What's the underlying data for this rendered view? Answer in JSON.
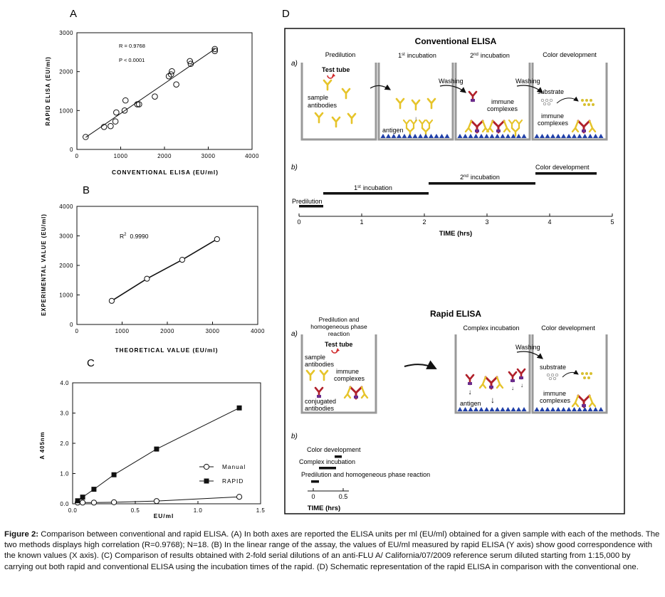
{
  "panel_labels": {
    "A": "A",
    "B": "B",
    "C": "C",
    "D": "D"
  },
  "chart_data": [
    {
      "id": "A",
      "type": "scatter",
      "title": "",
      "xlabel": "CONVENTIONAL ELISA (EU/ml)",
      "ylabel": "RAPID ELISA (EU/ml)",
      "xlim": [
        0,
        4000
      ],
      "ylim": [
        0,
        3000
      ],
      "xticks": [
        "0",
        "1000",
        "2000",
        "3000",
        "4000"
      ],
      "yticks": [
        "0",
        "1000",
        "2000",
        "3000"
      ],
      "points": [
        {
          "x": 200,
          "y": 320
        },
        {
          "x": 620,
          "y": 580
        },
        {
          "x": 770,
          "y": 600
        },
        {
          "x": 880,
          "y": 720
        },
        {
          "x": 900,
          "y": 950
        },
        {
          "x": 1090,
          "y": 1000
        },
        {
          "x": 1110,
          "y": 1260
        },
        {
          "x": 1380,
          "y": 1160
        },
        {
          "x": 1420,
          "y": 1160
        },
        {
          "x": 1780,
          "y": 1360
        },
        {
          "x": 2100,
          "y": 1880
        },
        {
          "x": 2150,
          "y": 1930
        },
        {
          "x": 2170,
          "y": 2010
        },
        {
          "x": 2270,
          "y": 1670
        },
        {
          "x": 2580,
          "y": 2270
        },
        {
          "x": 2600,
          "y": 2200
        },
        {
          "x": 3150,
          "y": 2530
        },
        {
          "x": 3150,
          "y": 2580
        }
      ],
      "fit_line": [
        {
          "x": 200,
          "y": 310
        },
        {
          "x": 3150,
          "y": 2580
        }
      ],
      "annotations": [
        "R = 0.9768",
        "P < 0.0001"
      ]
    },
    {
      "id": "B",
      "type": "line",
      "title": "",
      "xlabel": "THEORETICAL VALUE (EU/ml)",
      "ylabel": "EXPERIMENTAL VALUE (EU/ml)",
      "xlim": [
        0,
        4000
      ],
      "ylim": [
        0,
        4000
      ],
      "xticks": [
        "0",
        "1000",
        "2000",
        "3000",
        "4000"
      ],
      "yticks": [
        "0",
        "1000",
        "2000",
        "3000",
        "4000"
      ],
      "points": [
        {
          "x": 770,
          "y": 800
        },
        {
          "x": 1550,
          "y": 1550
        },
        {
          "x": 2330,
          "y": 2190
        },
        {
          "x": 3100,
          "y": 2890
        }
      ],
      "annotation": {
        "label": "R",
        "superscript": "2",
        "value": "0.9990"
      }
    },
    {
      "id": "C",
      "type": "line",
      "title": "",
      "xlabel": "EU/ml",
      "ylabel": "A 405nm",
      "xlim": [
        0,
        1.5
      ],
      "ylim": [
        0,
        4.0
      ],
      "xticks": [
        "0.0",
        "0.5",
        "1.0",
        "1.5"
      ],
      "yticks": [
        "0.0",
        "1.0",
        "2.0",
        "3.0",
        "4.0"
      ],
      "series": [
        {
          "name": "Manual",
          "marker": "open-circle",
          "x": [
            0.04,
            0.08,
            0.17,
            0.33,
            0.67,
            1.33
          ],
          "y": [
            0.04,
            0.04,
            0.04,
            0.05,
            0.09,
            0.23
          ]
        },
        {
          "name": "RAPID",
          "marker": "filled-square",
          "x": [
            0.04,
            0.08,
            0.17,
            0.33,
            0.67,
            1.33
          ],
          "y": [
            0.1,
            0.22,
            0.48,
            0.96,
            1.81,
            3.17
          ]
        }
      ],
      "legend_position": "right"
    }
  ],
  "diagram": {
    "conv_title": "Conventional ELISA",
    "conv_a_label": "a)",
    "step_predilution": "Predilution",
    "step_inc1_num": "1",
    "step_inc1_sup": "st",
    "step_inc1_text": "incubation",
    "step_inc2_num": "2",
    "step_inc2_sup": "nd",
    "step_inc2_text": "incubation",
    "step_color": "Color development",
    "test_tube": "Test tube",
    "sample": "sample",
    "antibodies": "antibodies",
    "antigen": "antigen",
    "washing": "Washing",
    "immune": "immune",
    "complexes": "complexes",
    "substrate": "substrate",
    "conv_b_label": "b)",
    "tl_color": "Color development",
    "tl_inc2_num": "2",
    "tl_inc2_sup": "nd",
    "tl_inc2_text": "incubation",
    "tl_inc1_num": "1",
    "tl_inc1_sup": "st",
    "tl_inc1_text": "incubation",
    "tl_predilution": "Predilution",
    "tl_ticks": [
      "0",
      "1",
      "2",
      "3",
      "4",
      "5"
    ],
    "tl_axis": "TIME (hrs)",
    "rapid_title": "Rapid ELISA",
    "rapid_a_label": "a)",
    "rapid_step1_l1": "Predilution and",
    "rapid_step1_l2": "homogeneous phase",
    "rapid_step1_l3": "reaction",
    "rapid_step2": "Complex incubation",
    "rapid_step3": "Color development",
    "conjugated": "conjugated",
    "rapid_b_label": "b)",
    "rtl_color": "Color development",
    "rtl_complex": "Complex incubation",
    "rtl_predil": "Predilution and homogeneous phase reaction",
    "rtl_ticks": [
      "0",
      "0.5"
    ],
    "rtl_axis": "TIME (hrs)"
  },
  "caption": {
    "label": "Figure 2:",
    "text": " Comparison between conventional and rapid ELISA. (A) In both axes are reported the ELISA units per ml (EU/ml) obtained for a given sample with each of the methods. The two methods displays high correlation (R=0.9768); N=18. (B) In the linear range of the assay, the values of EU/ml measured by rapid ELISA (Y axis) show good correspondence with the known values (X axis). (C) Comparison of results obtained with 2-fold serial dilutions of an anti-FLU A/ California/07/2009 reference serum diluted starting from 1:15,000 by carrying out both rapid and conventional ELISA using the incubation times of the rapid. (D) Schematic representation of the rapid ELISA in comparison with the conventional one."
  },
  "colors": {
    "ab_yellow": "#e6c42a",
    "ab_red": "#b0202a",
    "cap_purple": "#6a2c8c",
    "antigen_blue": "#1f3fa8",
    "arrow_red": "#d0282a",
    "substrate_yellow": "#d8c030"
  }
}
